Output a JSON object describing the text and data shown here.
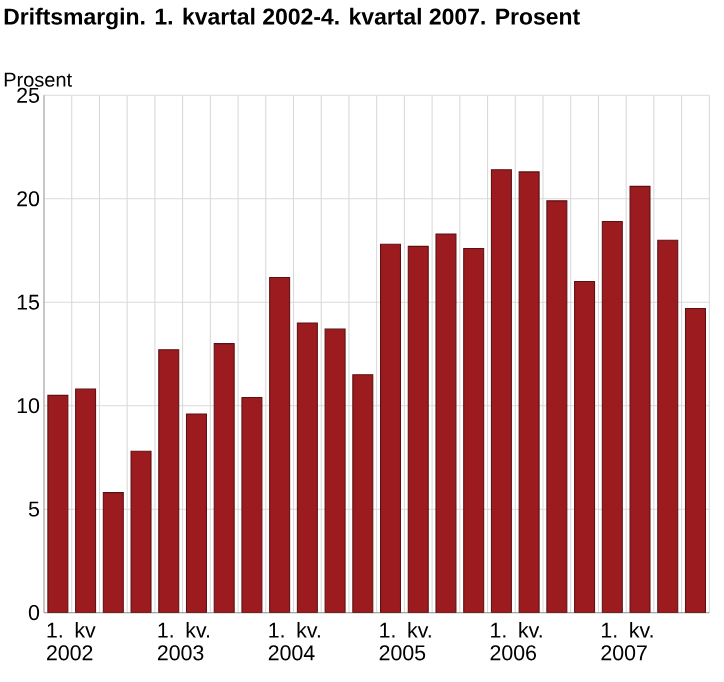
{
  "chart_data": {
    "type": "bar",
    "title": "Driftsmargin. 1. kvartal 2002-4. kvartal 2007. Prosent",
    "ylabel": "Prosent",
    "categories": [
      "1. kv 2002",
      null,
      null,
      null,
      "1. kv. 2003",
      null,
      null,
      null,
      "1. kv. 2004",
      null,
      null,
      null,
      "1. kv. 2005",
      null,
      null,
      null,
      "1. kv. 2006",
      null,
      null,
      null,
      "1. kv. 2007",
      null,
      null,
      null
    ],
    "values": [
      10.5,
      10.8,
      5.8,
      7.8,
      12.7,
      9.6,
      13.0,
      10.4,
      16.2,
      14.0,
      13.7,
      11.5,
      17.8,
      17.7,
      18.3,
      17.6,
      21.4,
      21.3,
      19.9,
      16.0,
      18.9,
      20.6,
      18.0,
      14.7
    ],
    "color": "#9b1b1f",
    "ylim": [
      0,
      25
    ],
    "yticks": [
      0,
      5,
      10,
      15,
      20,
      25
    ],
    "grid": true
  }
}
